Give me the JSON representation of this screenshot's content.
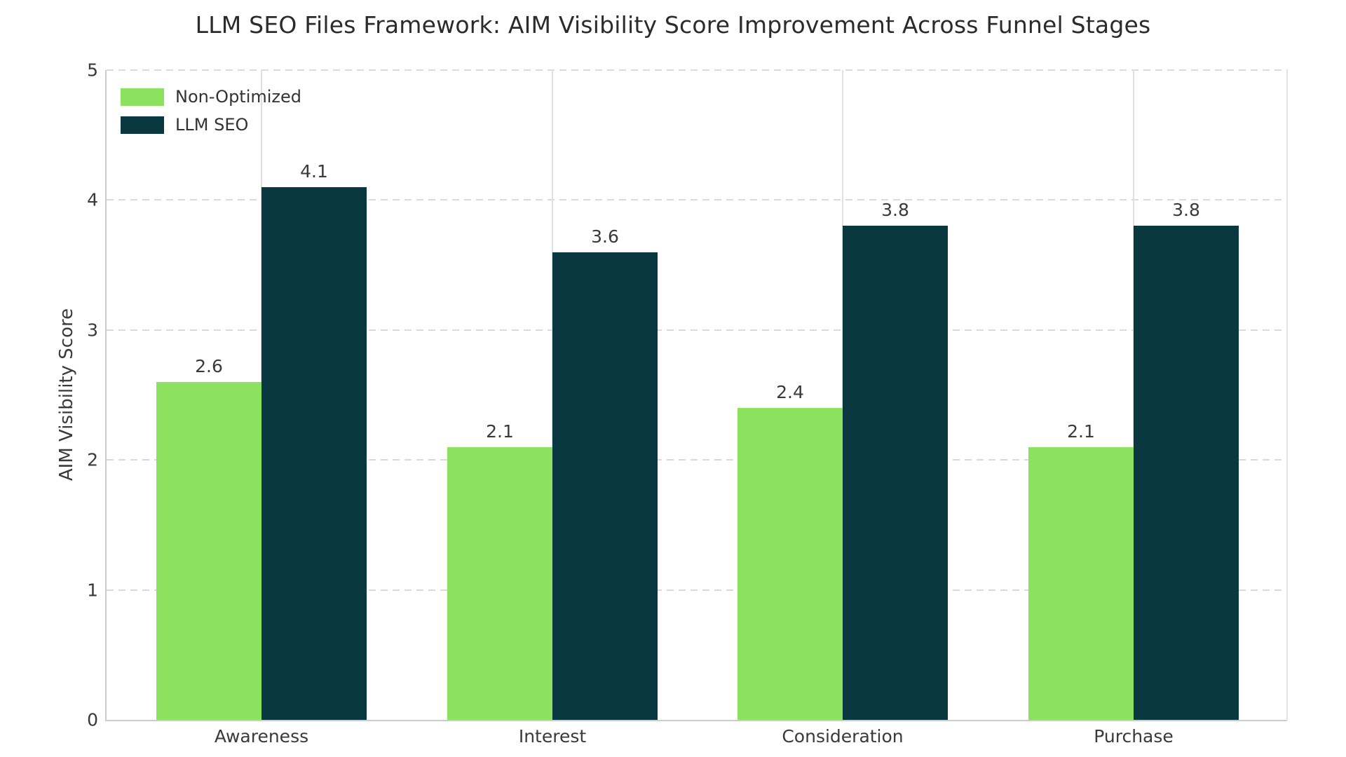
{
  "chart_data": {
    "type": "bar",
    "title": "LLM SEO Files Framework: AIM Visibility Score Improvement Across Funnel Stages",
    "xlabel": "",
    "ylabel": "AIM Visibility Score",
    "categories": [
      "Awareness",
      "Interest",
      "Consideration",
      "Purchase"
    ],
    "series": [
      {
        "name": "Non-Optimized",
        "color": "#8CE25F",
        "values": [
          2.6,
          2.1,
          2.4,
          2.1
        ]
      },
      {
        "name": "LLM SEO",
        "color": "#0A3840",
        "values": [
          4.1,
          3.6,
          3.8,
          3.8
        ]
      }
    ],
    "ylim": [
      0,
      5
    ],
    "yticks": [
      0,
      1,
      2,
      3,
      4,
      5
    ],
    "grid": {
      "horizontal": "dashed",
      "vertical": "solid-at-category-centers",
      "color": "#dadada"
    },
    "legend": {
      "position": "upper-left",
      "entries": [
        "Non-Optimized",
        "LLM SEO"
      ]
    },
    "colors": {
      "background": "#ffffff",
      "title_text": "#2b2b2b",
      "axis_text": "#3a3a3a",
      "spine": "#cccccc",
      "non_optimized": "#8CE25F",
      "llm_seo": "#0A3840"
    }
  }
}
